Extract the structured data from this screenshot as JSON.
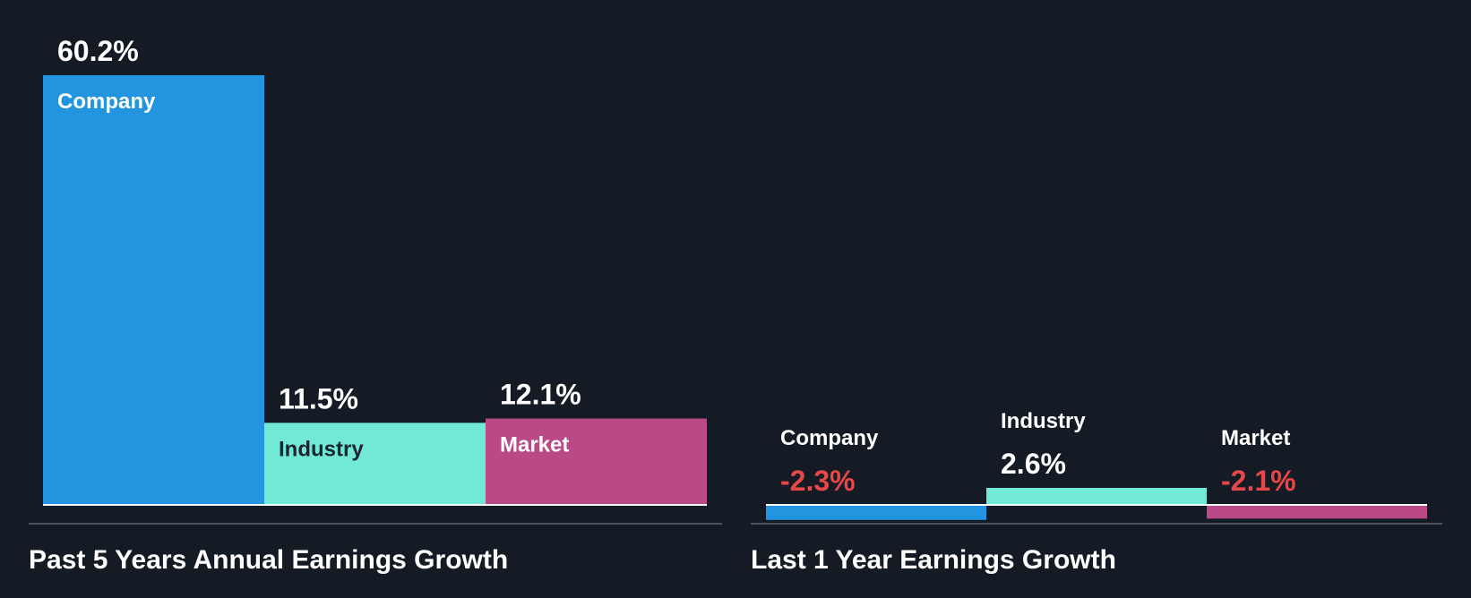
{
  "colors": {
    "background": "#151b24",
    "company": "#2394e0",
    "industry": "#72e9d7",
    "market": "#b94a87",
    "positive_text": "#ffffff",
    "negative_text": "#e64747",
    "label_on_dark_bar": "#ffffff",
    "label_on_light_bar": "#1c2530",
    "axis": "#4a5260"
  },
  "chart_data": [
    {
      "type": "bar",
      "title": "Past 5 Years Annual Earnings Growth",
      "categories": [
        "Company",
        "Industry",
        "Market"
      ],
      "values": [
        60.2,
        11.5,
        12.1
      ],
      "value_labels": [
        "60.2%",
        "11.5%",
        "12.1%"
      ],
      "unit": "%"
    },
    {
      "type": "bar",
      "title": "Last 1 Year Earnings Growth",
      "categories": [
        "Company",
        "Industry",
        "Market"
      ],
      "values": [
        -2.3,
        2.6,
        -2.1
      ],
      "value_labels": [
        "-2.3%",
        "2.6%",
        "-2.1%"
      ],
      "unit": "%"
    }
  ]
}
